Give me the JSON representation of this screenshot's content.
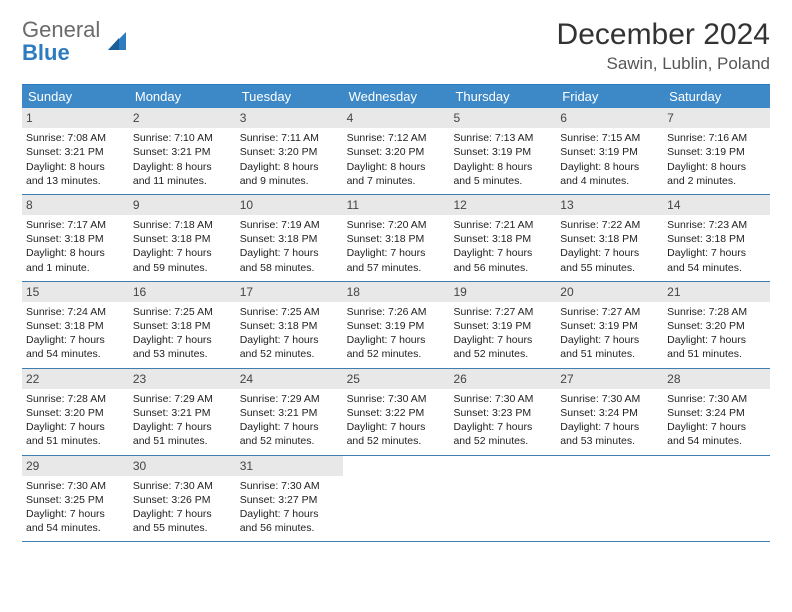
{
  "brand": {
    "word1": "General",
    "word2": "Blue"
  },
  "title": "December 2024",
  "subtitle": "Sawin, Lublin, Poland",
  "colors": {
    "header_bg": "#3d89c8",
    "header_text": "#ffffff",
    "daynum_bg": "#e8e8e8",
    "border": "#3d7fb3",
    "brand_blue": "#2f7bbf",
    "brand_gray": "#6a6a6a",
    "body_text": "#222222"
  },
  "day_header": [
    "Sunday",
    "Monday",
    "Tuesday",
    "Wednesday",
    "Thursday",
    "Friday",
    "Saturday"
  ],
  "weeks": [
    [
      {
        "n": "1",
        "sunrise": "Sunrise: 7:08 AM",
        "sunset": "Sunset: 3:21 PM",
        "daylight": "Daylight: 8 hours and 13 minutes."
      },
      {
        "n": "2",
        "sunrise": "Sunrise: 7:10 AM",
        "sunset": "Sunset: 3:21 PM",
        "daylight": "Daylight: 8 hours and 11 minutes."
      },
      {
        "n": "3",
        "sunrise": "Sunrise: 7:11 AM",
        "sunset": "Sunset: 3:20 PM",
        "daylight": "Daylight: 8 hours and 9 minutes."
      },
      {
        "n": "4",
        "sunrise": "Sunrise: 7:12 AM",
        "sunset": "Sunset: 3:20 PM",
        "daylight": "Daylight: 8 hours and 7 minutes."
      },
      {
        "n": "5",
        "sunrise": "Sunrise: 7:13 AM",
        "sunset": "Sunset: 3:19 PM",
        "daylight": "Daylight: 8 hours and 5 minutes."
      },
      {
        "n": "6",
        "sunrise": "Sunrise: 7:15 AM",
        "sunset": "Sunset: 3:19 PM",
        "daylight": "Daylight: 8 hours and 4 minutes."
      },
      {
        "n": "7",
        "sunrise": "Sunrise: 7:16 AM",
        "sunset": "Sunset: 3:19 PM",
        "daylight": "Daylight: 8 hours and 2 minutes."
      }
    ],
    [
      {
        "n": "8",
        "sunrise": "Sunrise: 7:17 AM",
        "sunset": "Sunset: 3:18 PM",
        "daylight": "Daylight: 8 hours and 1 minute."
      },
      {
        "n": "9",
        "sunrise": "Sunrise: 7:18 AM",
        "sunset": "Sunset: 3:18 PM",
        "daylight": "Daylight: 7 hours and 59 minutes."
      },
      {
        "n": "10",
        "sunrise": "Sunrise: 7:19 AM",
        "sunset": "Sunset: 3:18 PM",
        "daylight": "Daylight: 7 hours and 58 minutes."
      },
      {
        "n": "11",
        "sunrise": "Sunrise: 7:20 AM",
        "sunset": "Sunset: 3:18 PM",
        "daylight": "Daylight: 7 hours and 57 minutes."
      },
      {
        "n": "12",
        "sunrise": "Sunrise: 7:21 AM",
        "sunset": "Sunset: 3:18 PM",
        "daylight": "Daylight: 7 hours and 56 minutes."
      },
      {
        "n": "13",
        "sunrise": "Sunrise: 7:22 AM",
        "sunset": "Sunset: 3:18 PM",
        "daylight": "Daylight: 7 hours and 55 minutes."
      },
      {
        "n": "14",
        "sunrise": "Sunrise: 7:23 AM",
        "sunset": "Sunset: 3:18 PM",
        "daylight": "Daylight: 7 hours and 54 minutes."
      }
    ],
    [
      {
        "n": "15",
        "sunrise": "Sunrise: 7:24 AM",
        "sunset": "Sunset: 3:18 PM",
        "daylight": "Daylight: 7 hours and 54 minutes."
      },
      {
        "n": "16",
        "sunrise": "Sunrise: 7:25 AM",
        "sunset": "Sunset: 3:18 PM",
        "daylight": "Daylight: 7 hours and 53 minutes."
      },
      {
        "n": "17",
        "sunrise": "Sunrise: 7:25 AM",
        "sunset": "Sunset: 3:18 PM",
        "daylight": "Daylight: 7 hours and 52 minutes."
      },
      {
        "n": "18",
        "sunrise": "Sunrise: 7:26 AM",
        "sunset": "Sunset: 3:19 PM",
        "daylight": "Daylight: 7 hours and 52 minutes."
      },
      {
        "n": "19",
        "sunrise": "Sunrise: 7:27 AM",
        "sunset": "Sunset: 3:19 PM",
        "daylight": "Daylight: 7 hours and 52 minutes."
      },
      {
        "n": "20",
        "sunrise": "Sunrise: 7:27 AM",
        "sunset": "Sunset: 3:19 PM",
        "daylight": "Daylight: 7 hours and 51 minutes."
      },
      {
        "n": "21",
        "sunrise": "Sunrise: 7:28 AM",
        "sunset": "Sunset: 3:20 PM",
        "daylight": "Daylight: 7 hours and 51 minutes."
      }
    ],
    [
      {
        "n": "22",
        "sunrise": "Sunrise: 7:28 AM",
        "sunset": "Sunset: 3:20 PM",
        "daylight": "Daylight: 7 hours and 51 minutes."
      },
      {
        "n": "23",
        "sunrise": "Sunrise: 7:29 AM",
        "sunset": "Sunset: 3:21 PM",
        "daylight": "Daylight: 7 hours and 51 minutes."
      },
      {
        "n": "24",
        "sunrise": "Sunrise: 7:29 AM",
        "sunset": "Sunset: 3:21 PM",
        "daylight": "Daylight: 7 hours and 52 minutes."
      },
      {
        "n": "25",
        "sunrise": "Sunrise: 7:30 AM",
        "sunset": "Sunset: 3:22 PM",
        "daylight": "Daylight: 7 hours and 52 minutes."
      },
      {
        "n": "26",
        "sunrise": "Sunrise: 7:30 AM",
        "sunset": "Sunset: 3:23 PM",
        "daylight": "Daylight: 7 hours and 52 minutes."
      },
      {
        "n": "27",
        "sunrise": "Sunrise: 7:30 AM",
        "sunset": "Sunset: 3:24 PM",
        "daylight": "Daylight: 7 hours and 53 minutes."
      },
      {
        "n": "28",
        "sunrise": "Sunrise: 7:30 AM",
        "sunset": "Sunset: 3:24 PM",
        "daylight": "Daylight: 7 hours and 54 minutes."
      }
    ],
    [
      {
        "n": "29",
        "sunrise": "Sunrise: 7:30 AM",
        "sunset": "Sunset: 3:25 PM",
        "daylight": "Daylight: 7 hours and 54 minutes."
      },
      {
        "n": "30",
        "sunrise": "Sunrise: 7:30 AM",
        "sunset": "Sunset: 3:26 PM",
        "daylight": "Daylight: 7 hours and 55 minutes."
      },
      {
        "n": "31",
        "sunrise": "Sunrise: 7:30 AM",
        "sunset": "Sunset: 3:27 PM",
        "daylight": "Daylight: 7 hours and 56 minutes."
      },
      null,
      null,
      null,
      null
    ]
  ]
}
